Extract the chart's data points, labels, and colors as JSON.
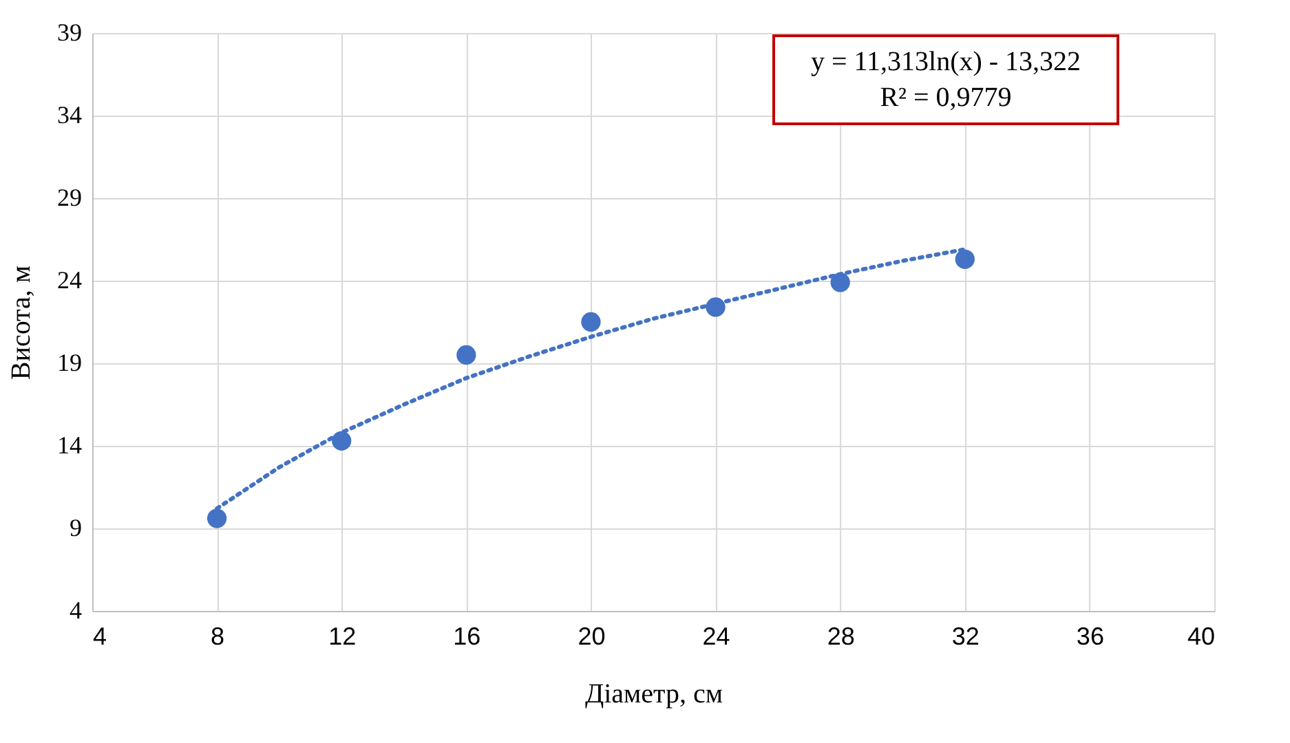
{
  "chart_data": {
    "type": "scatter",
    "xlabel": "Діаметр, см",
    "ylabel": "Висота, м",
    "x": [
      8,
      12,
      16,
      20,
      24,
      28,
      32
    ],
    "series": [
      {
        "color": "#4472c4",
        "marker": "circle",
        "values": [
          9.6,
          14.3,
          19.5,
          21.5,
          22.4,
          23.9,
          25.3
        ]
      },
      {
        "type": "line",
        "color": "#4472c4",
        "line_style": "dotted",
        "marker": "none",
        "x": [
          8,
          10,
          12,
          14,
          16,
          18,
          20,
          22,
          24,
          26,
          28,
          30,
          32
        ],
        "values": [
          10.2,
          12.7,
          14.8,
          16.5,
          18.1,
          19.4,
          20.6,
          21.7,
          22.6,
          23.5,
          24.4,
          25.2,
          25.9
        ]
      }
    ],
    "annotations": [
      "y = 11,313ln(x) - 13,322",
      "R² = 0,9779"
    ],
    "xlim": [
      4,
      40
    ],
    "xticks": [
      4,
      8,
      12,
      16,
      20,
      24,
      28,
      32,
      36,
      40
    ],
    "ylim": [
      4,
      39
    ],
    "yticks": [
      4,
      9,
      14,
      19,
      24,
      29,
      34,
      39
    ],
    "grid": true
  }
}
